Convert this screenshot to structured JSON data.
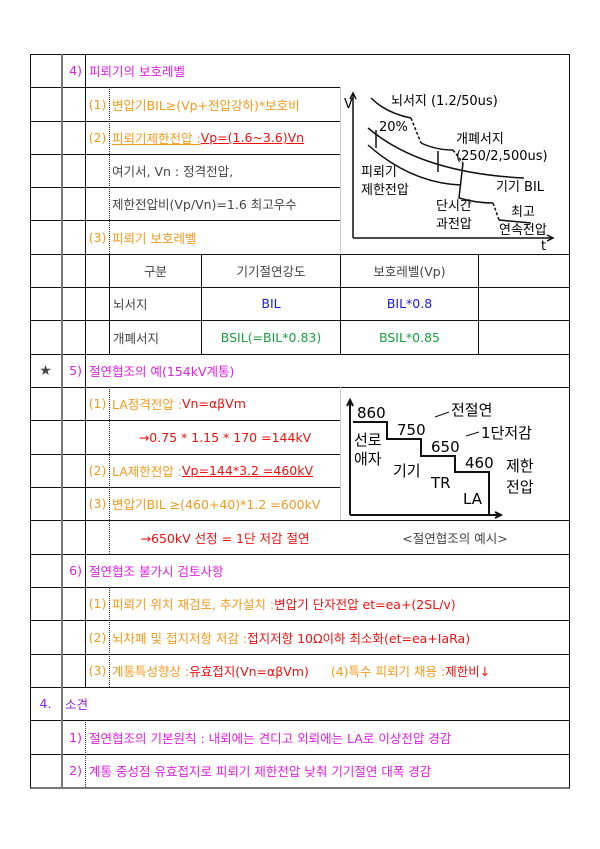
{
  "s4": {
    "num": "4)",
    "title": "피뢰기의 보호레벨",
    "i1": {
      "num": "(1)",
      "text": "변압기BIL≥(Vp+전압강하)*보호비"
    },
    "i2": {
      "num": "(2)",
      "label": "피뢰기제한전압 : ",
      "formula": "Vp=(1.6~3.6)Vn"
    },
    "note1": "여기서, Vn : 정격전압,",
    "note2": "제한전압비(Vp/Vn)=1.6 최고우수",
    "i3": {
      "num": "(3)",
      "text": "피뢰기 보호레벨"
    },
    "table": {
      "headers": [
        "구분",
        "기기절연강도",
        "보호레벨(Vp)"
      ],
      "rows": [
        [
          "뇌서지",
          "BIL",
          "BIL*0.8"
        ],
        [
          "개폐서지",
          "BSIL(=BIL*0.83)",
          "BSIL*0.85"
        ]
      ]
    },
    "diagram": {
      "v": "V",
      "t": "t",
      "lightning": "뇌서지 (1.2/50us)",
      "pct": "20%",
      "switching1": "개폐서지",
      "switching2": "(250/2,500us)",
      "arrester1": "피뢰기",
      "arrester2": "제한전압",
      "bil": "기기 BIL",
      "short1": "단시간",
      "short2": "과전압",
      "max1": "최고",
      "max2": "연속전압"
    }
  },
  "s5": {
    "star": "★",
    "num": "5)",
    "title": "절연협조의 예(154kV계통)",
    "i1": {
      "num": "(1)",
      "label": "LA정격전압 : ",
      "formula": "Vn=αβVm"
    },
    "calc1": "→0.75 * 1.15 * 170 =144kV",
    "i2": {
      "num": "(2)",
      "label": "LA제한전압 : ",
      "formula": "Vp=144*3.2 =460kV"
    },
    "i3": {
      "num": "(3)",
      "text": "변압기BIL ≥(460+40)*1.2 =600kV"
    },
    "calc2": "→650kV 선정 = 1단 저감 절연",
    "diagram": {
      "v860": "860",
      "v750": "750",
      "v650": "650",
      "v460": "460",
      "full": "전절연",
      "reduced": "1단저감",
      "line1": "선로",
      "line2": "애자",
      "equip": "기기",
      "tr": "TR",
      "la": "LA",
      "lim1": "제한",
      "lim2": "전압",
      "caption": "<절연협조의 예시>"
    }
  },
  "s6": {
    "num": "6)",
    "title": "절연협조 불가시 검토사항",
    "i1": {
      "num": "(1)",
      "label": "피뢰기 위치 재검토, 추가설치 : ",
      "value": "변압기 단자전압 et=ea+(2SL/v)"
    },
    "i2": {
      "num": "(2)",
      "label": "뇌차폐 및 접지저항 저감 : ",
      "value": "접지저항 10Ω이하 최소화(et=ea+IaRa)"
    },
    "i3": {
      "num": "(3)",
      "label": "계통특성향상 : ",
      "value": "유효접지(Vn=αβVm)",
      "label2": "(4)특수 피뢰기 채용 : ",
      "value2": "제한비↓"
    }
  },
  "s7": {
    "num": "4.",
    "title": "소견",
    "items": [
      {
        "num": "1)",
        "text": "절연협조의 기본원칙 : 내뢰에는 견디고 외뢰에는 LA로 이상전압 경감"
      },
      {
        "num": "2)",
        "text": "계통 중성점 유효접지로 피뢰기 제한전압 낮춰 기기절연 대폭 경감"
      }
    ]
  }
}
